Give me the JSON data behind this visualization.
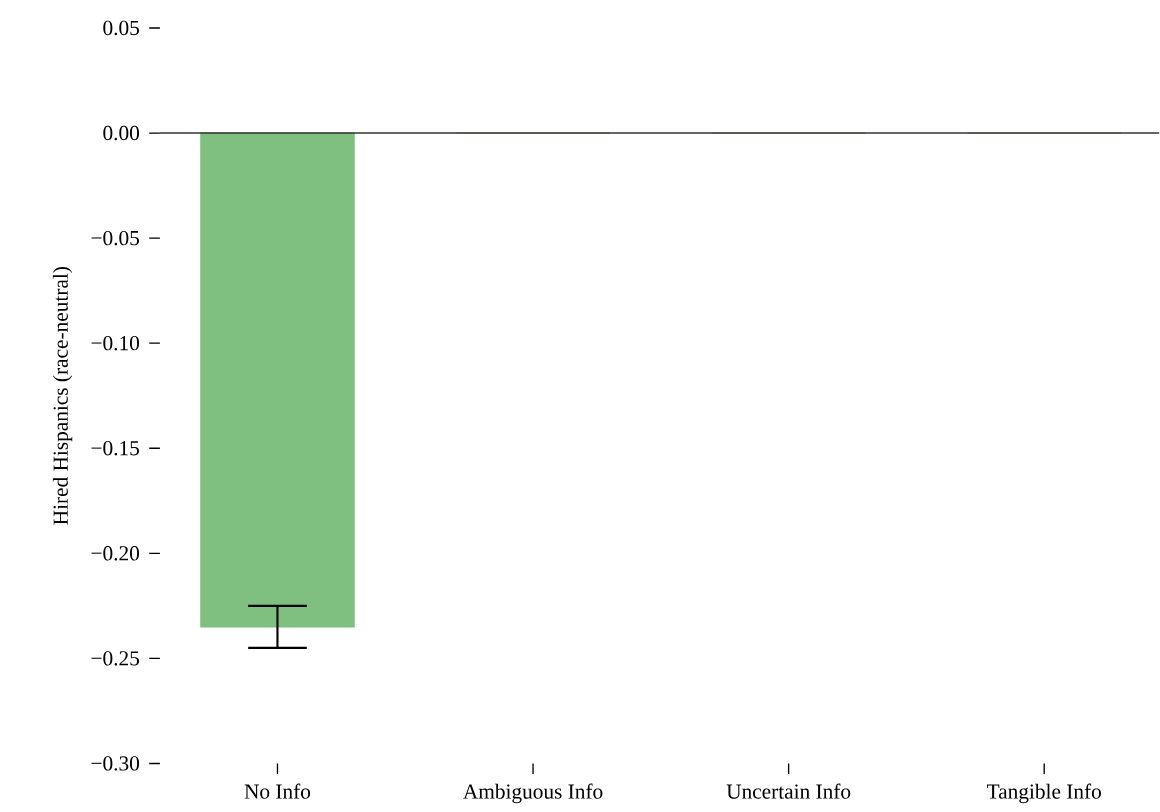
{
  "chart_data": {
    "type": "bar",
    "ylabel": "Hired Hispanics (race-neutral)",
    "categories": [
      "No Info",
      "Ambiguous Info",
      "Uncertain Info",
      "Tangible Info"
    ],
    "values": [
      -0.235,
      0,
      0,
      0
    ],
    "errors": [
      0.01,
      null,
      null,
      null
    ],
    "color": "#7fbf7f",
    "ylim": [
      -0.3,
      0.05
    ],
    "yticks": [
      {
        "value": 0.05,
        "label": "0.05"
      },
      {
        "value": 0.0,
        "label": "0.00"
      },
      {
        "value": -0.05,
        "label": "−0.05"
      },
      {
        "value": -0.1,
        "label": "−0.10"
      },
      {
        "value": -0.15,
        "label": "−0.15"
      },
      {
        "value": -0.2,
        "label": "−0.20"
      },
      {
        "value": -0.25,
        "label": "−0.25"
      },
      {
        "value": -0.3,
        "label": "−0.30"
      }
    ],
    "ref_lines": [
      {
        "axis": "y",
        "value": 0,
        "color": "#333333"
      }
    ]
  }
}
